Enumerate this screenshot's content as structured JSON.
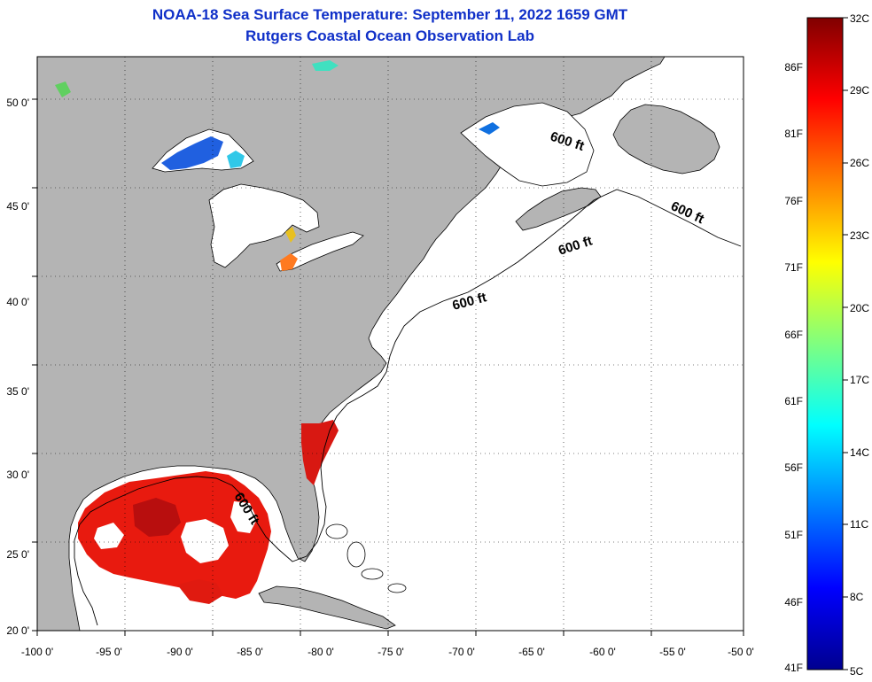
{
  "header": {
    "title": "NOAA-18 Sea Surface Temperature:  September 11, 2022 1659 GMT",
    "subtitle": "Rutgers Coastal Ocean Observation Lab"
  },
  "map": {
    "lon_range": [
      -100,
      -50
    ],
    "lat_range": [
      20,
      52.5
    ],
    "lon_ticks": [
      "-100 0'",
      "-95 0'",
      "-90 0'",
      "-85 0'",
      "-80 0'",
      "-75 0'",
      "-70 0'",
      "-65 0'",
      "-60 0'",
      "-55 0'",
      "-50 0'"
    ],
    "lat_ticks": [
      "20 0'",
      "25 0'",
      "30 0'",
      "35 0'",
      "40 0'",
      "45 0'",
      "50 0'"
    ],
    "contour_label": "600 ft",
    "land_color": "#b4b4b4",
    "ocean_color": "#ffffff",
    "grid": "dotted"
  },
  "colorbar": {
    "celsius_labels": [
      "32C",
      "29C",
      "26C",
      "23C",
      "20C",
      "17C",
      "14C",
      "11C",
      "8C",
      "5C"
    ],
    "fahrenheit_labels": [
      "86F",
      "81F",
      "76F",
      "71F",
      "66F",
      "61F",
      "56F",
      "51F",
      "46F",
      "41F"
    ],
    "colormap": "jet",
    "range_c": [
      5,
      32
    ]
  }
}
